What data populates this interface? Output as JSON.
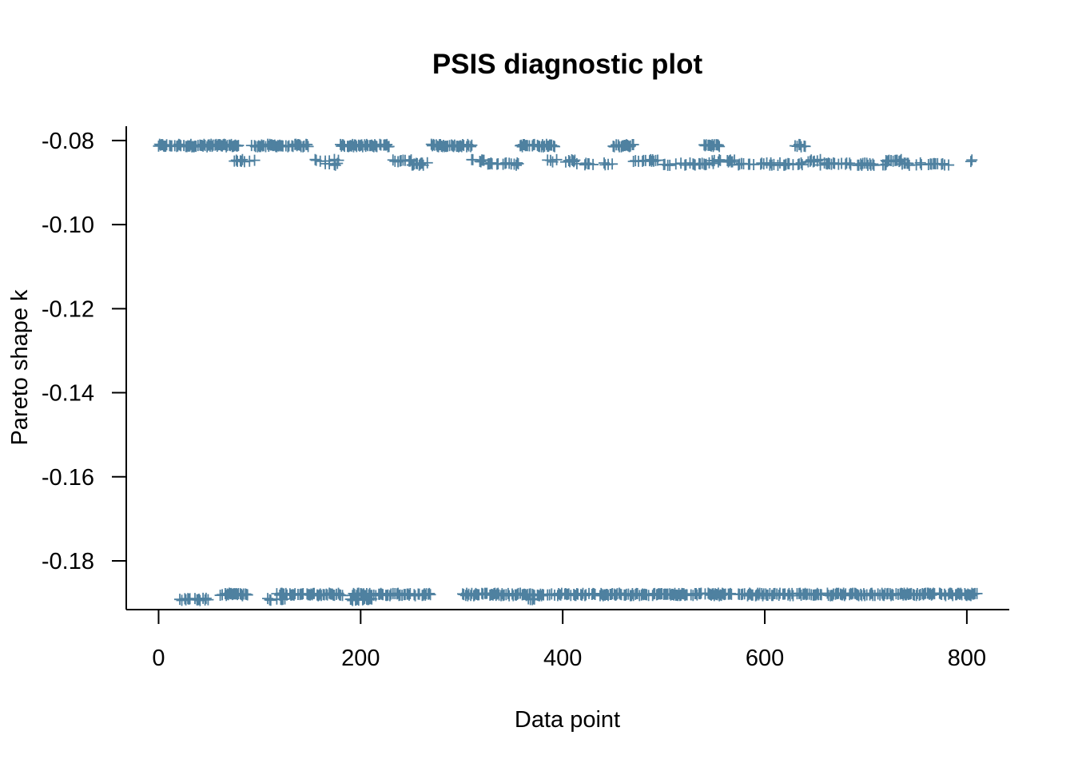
{
  "chart_data": {
    "type": "scatter",
    "title": "PSIS diagnostic plot",
    "xlabel": "Data point",
    "ylabel": "Pareto shape k",
    "xlim": [
      -32,
      842
    ],
    "ylim": [
      -0.1916,
      -0.0766
    ],
    "x_ticks": [
      0,
      200,
      400,
      600,
      800
    ],
    "x_tick_labels": [
      "0",
      "200",
      "400",
      "600",
      "800"
    ],
    "y_ticks": [
      -0.18,
      -0.16,
      -0.14,
      -0.12,
      -0.1,
      -0.08
    ],
    "y_tick_labels": [
      "-0.18",
      "-0.16",
      "-0.14",
      "-0.12",
      "-0.10",
      "-0.08"
    ],
    "grid": false,
    "legend": "none",
    "marker": "plus",
    "color": "#4f81a0",
    "n_points": 810,
    "clusters": [
      {
        "y": -0.0812,
        "x_ranges": [
          [
            0,
            68
          ],
          [
            70,
            80
          ],
          [
            92,
            148
          ],
          [
            180,
            228
          ],
          [
            270,
            310
          ],
          [
            358,
            392
          ],
          [
            450,
            470
          ],
          [
            540,
            555
          ],
          [
            630,
            640
          ]
        ],
        "density": 0.8
      },
      {
        "y": -0.0848,
        "x_ranges": [
          [
            75,
            95
          ],
          [
            150,
            178
          ],
          [
            230,
            250
          ],
          [
            310,
            322
          ],
          [
            385,
            412
          ],
          [
            470,
            495
          ],
          [
            548,
            570
          ],
          [
            640,
            655
          ],
          [
            720,
            735
          ],
          [
            802,
            808
          ]
        ],
        "density": 0.45
      },
      {
        "y": -0.0856,
        "x_ranges": [
          [
            165,
            180
          ],
          [
            250,
            270
          ],
          [
            322,
            360
          ],
          [
            412,
            450
          ],
          [
            495,
            550
          ],
          [
            570,
            640
          ],
          [
            655,
            720
          ],
          [
            735,
            782
          ]
        ],
        "density": 0.38
      },
      {
        "y": -0.188,
        "x_ranges": [
          [
            60,
            90
          ],
          [
            115,
            182
          ],
          [
            192,
            230
          ],
          [
            232,
            270
          ],
          [
            300,
            372
          ],
          [
            375,
            812
          ]
        ],
        "density": 0.72
      },
      {
        "y": -0.1892,
        "x_ranges": [
          [
            20,
            50
          ],
          [
            105,
            125
          ],
          [
            188,
            212
          ],
          [
            362,
            372
          ]
        ],
        "density": 0.5
      }
    ]
  }
}
